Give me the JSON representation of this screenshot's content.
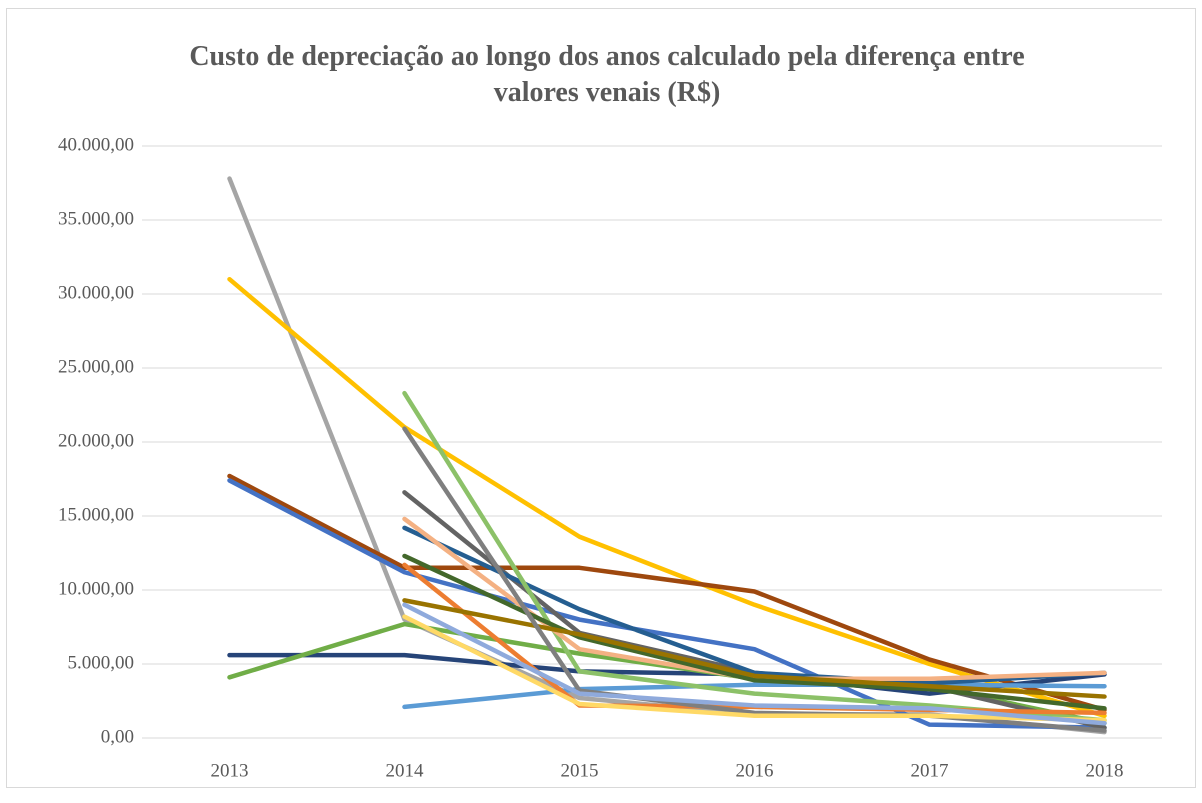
{
  "chart_data": {
    "type": "line",
    "title": "Custo de depreciação ao longo dos anos calculado pela diferença entre valores venais (R$)",
    "categories": [
      "2013",
      "2014",
      "2015",
      "2016",
      "2017",
      "2018"
    ],
    "ylim": [
      0,
      40000
    ],
    "yticks": [
      {
        "value": 0,
        "label": "0,00"
      },
      {
        "value": 5000,
        "label": "5.000,00"
      },
      {
        "value": 10000,
        "label": "10.000,00"
      },
      {
        "value": 15000,
        "label": "15.000,00"
      },
      {
        "value": 20000,
        "label": "20.000,00"
      },
      {
        "value": 25000,
        "label": "25.000,00"
      },
      {
        "value": 30000,
        "label": "30.000,00"
      },
      {
        "value": 35000,
        "label": "35.000,00"
      },
      {
        "value": 40000,
        "label": "40.000,00"
      }
    ],
    "grid": true,
    "series": [
      {
        "color": "#a5a5a5",
        "values": [
          37800,
          8000,
          2700,
          1600,
          1600,
          400
        ]
      },
      {
        "color": "#ffc000",
        "values": [
          31000,
          21000,
          13600,
          9000,
          5000,
          1500
        ]
      },
      {
        "color": "#9e480e",
        "values": [
          17700,
          11500,
          11500,
          9900,
          5300,
          1900
        ]
      },
      {
        "color": "#4472c4",
        "values": [
          17400,
          11200,
          8000,
          6000,
          900,
          700
        ]
      },
      {
        "color": "#264478",
        "values": [
          5600,
          5600,
          4500,
          4300,
          3000,
          4300
        ]
      },
      {
        "color": "#70ad47",
        "values": [
          4100,
          7700,
          5700,
          4000,
          3500,
          1000
        ]
      },
      {
        "color": "#5b9bd5",
        "values": [
          null,
          2100,
          3300,
          3600,
          3600,
          3500
        ]
      },
      {
        "color": "#636363",
        "values": [
          null,
          16600,
          7100,
          4400,
          3500,
          700
        ]
      },
      {
        "color": "#255e91",
        "values": [
          null,
          14200,
          8700,
          4400,
          3700,
          4400
        ]
      },
      {
        "color": "#8cc168",
        "values": [
          null,
          23300,
          4500,
          3000,
          2200,
          1200
        ]
      },
      {
        "color": "#f4b183",
        "values": [
          null,
          14800,
          6000,
          4000,
          4000,
          4400
        ]
      },
      {
        "color": "#ed7d31",
        "values": [
          null,
          11700,
          2200,
          2100,
          1900,
          1700
        ]
      },
      {
        "color": "#43682b",
        "values": [
          null,
          12300,
          6800,
          3900,
          3300,
          2000
        ]
      },
      {
        "color": "#997300",
        "values": [
          null,
          9300,
          7000,
          4200,
          3500,
          2800
        ]
      },
      {
        "color": "#7f7f7f",
        "values": [
          null,
          20900,
          3200,
          1700,
          1500,
          500
        ]
      },
      {
        "color": "#ffd966",
        "values": [
          null,
          8200,
          2300,
          1500,
          1500,
          1200
        ]
      },
      {
        "color": "#8faadc",
        "values": [
          null,
          9000,
          3000,
          2200,
          2000,
          1000
        ]
      }
    ]
  }
}
